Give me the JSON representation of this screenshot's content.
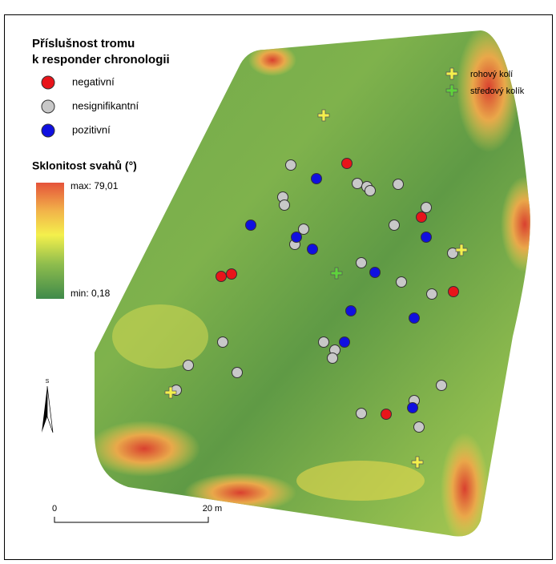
{
  "legend": {
    "title_line1": "Příslušnost tromu",
    "title_line2": "k responder chronologii",
    "items": [
      "negativní",
      "nesignifikantní",
      "pozitivní"
    ]
  },
  "slope": {
    "title": "Sklonitost svahů (°)",
    "max_label": "max: 79,01",
    "min_label": "min: 0,18"
  },
  "markers": {
    "items": [
      "rohový kolí",
      "středový kolík"
    ]
  },
  "scale": {
    "start": "0",
    "end": "20 m"
  },
  "north": "S"
}
